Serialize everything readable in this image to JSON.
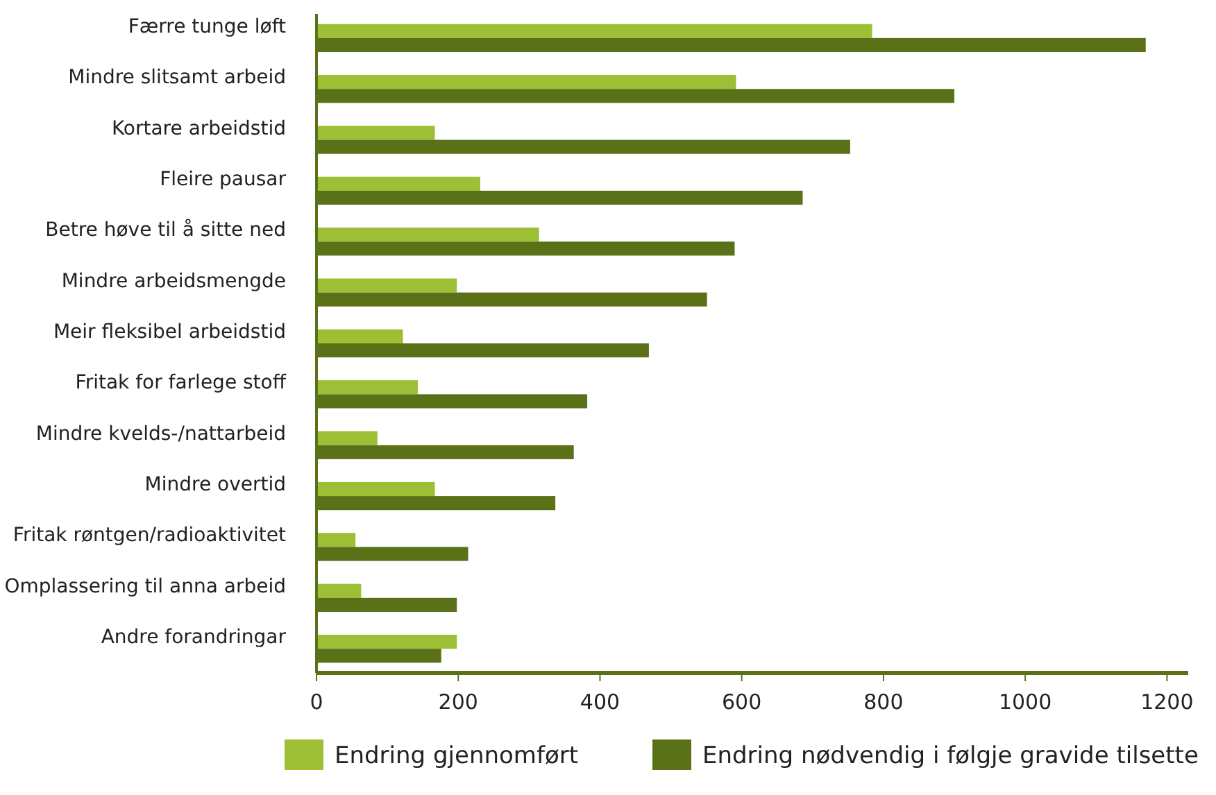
{
  "chart_data": {
    "type": "bar",
    "orientation": "horizontal",
    "categories": [
      "Færre tunge løft",
      "Mindre slitsamt arbeid",
      "Kortare arbeidstid",
      "Fleire pausar",
      "Betre høve til å sitte ned",
      "Mindre arbeidsmengde",
      "Meir fleksibel arbeidstid",
      "Fritak for farlege stoff",
      "Mindre kvelds-/nattarbeid",
      "Mindre overtid",
      "Fritak røntgen/radioaktivitet",
      "Omplassering til anna arbeid",
      "Andre forandringar"
    ],
    "series": [
      {
        "name": "Endring gjennomført",
        "color": "#9dbf35",
        "values": [
          784,
          592,
          167,
          231,
          314,
          198,
          122,
          143,
          86,
          167,
          55,
          63,
          198
        ]
      },
      {
        "name": "Endring nødvendig i følgje gravide tilsette",
        "color": "#5a7118",
        "values": [
          1170,
          900,
          753,
          686,
          590,
          551,
          469,
          382,
          363,
          337,
          214,
          198,
          176
        ]
      }
    ],
    "xlim": [
      0,
      1230
    ],
    "xticks": [
      0,
      200,
      400,
      600,
      800,
      1000,
      1200
    ],
    "grid": false,
    "legend": "bottom"
  }
}
